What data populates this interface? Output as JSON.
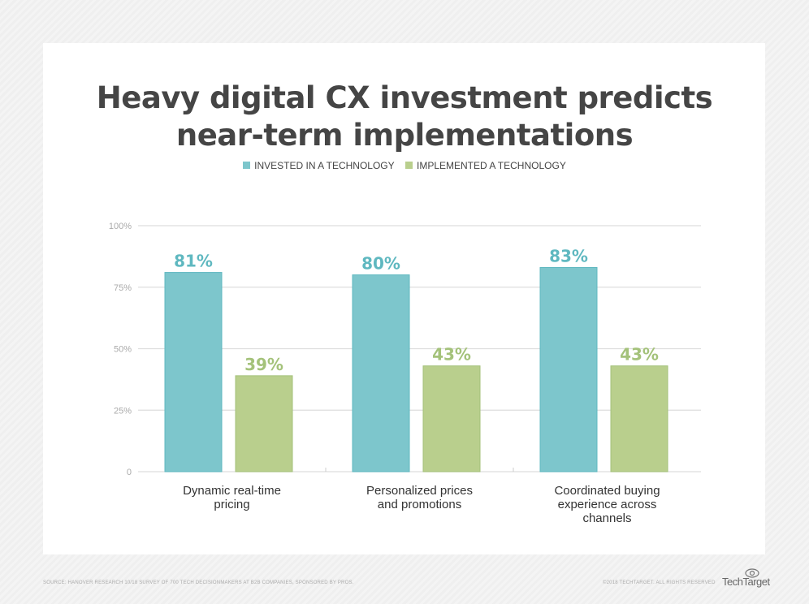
{
  "chart_data": {
    "type": "bar",
    "title": "Heavy digital CX investment predicts near-term implementations",
    "title_lines": [
      "Heavy digital CX investment predicts",
      "near-term implementations"
    ],
    "categories": [
      [
        "Dynamic real-time",
        "pricing"
      ],
      [
        "Personalized prices",
        "and promotions"
      ],
      [
        "Coordinated buying",
        "experience across",
        "channels"
      ]
    ],
    "series": [
      {
        "name": "INVESTED IN A TECHNOLOGY",
        "values": [
          81,
          80,
          83
        ],
        "color": "#7dc6cc",
        "label_color": "#5fb8c0"
      },
      {
        "name": "IMPLEMENTED A TECHNOLOGY",
        "values": [
          39,
          43,
          43
        ],
        "color": "#b9cf8d",
        "label_color": "#a4c27a"
      }
    ],
    "value_suffix": "%",
    "ylim": [
      0,
      100
    ],
    "yticks": [
      0,
      25,
      50,
      75,
      100
    ],
    "ytick_labels": [
      "0",
      "25%",
      "50%",
      "75%",
      "100%"
    ],
    "grid": true,
    "legend_position": "top"
  },
  "footer": {
    "source": "SOURCE: HANOVER RESEARCH 10/18 SURVEY OF 700 TECH DECISIONMAKERS AT B2B COMPANIES, SPONSORED BY PROS.",
    "copyright": "©2018 TECHTARGET. ALL RIGHTS RESERVED",
    "logo": "TechTarget"
  }
}
